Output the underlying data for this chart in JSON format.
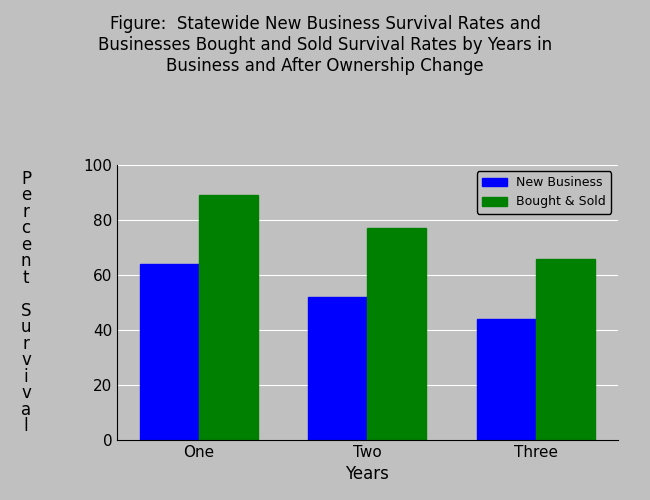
{
  "title": "Figure:  Statewide New Business Survival Rates and\nBusinesses Bought and Sold Survival Rates by Years in\nBusiness and After Ownership Change",
  "categories": [
    "One",
    "Two",
    "Three"
  ],
  "new_business": [
    64,
    52,
    44
  ],
  "bought_sold": [
    89,
    77,
    66
  ],
  "bar_color_new": "#0000ff",
  "bar_color_bought": "#008000",
  "xlabel": "Years",
  "ylabel_chars": [
    "P",
    "e",
    "r",
    "c",
    "e",
    "n",
    "t",
    " ",
    "S",
    "u",
    "r",
    "v",
    "i",
    "v",
    "a",
    "l"
  ],
  "ylim": [
    0,
    100
  ],
  "yticks": [
    0,
    20,
    40,
    60,
    80,
    100
  ],
  "legend_labels": [
    "New Business",
    "Bought & Sold"
  ],
  "background_color": "#c0c0c0",
  "plot_bg_color": "#c0c0c0",
  "title_fontsize": 12,
  "axis_label_fontsize": 12,
  "tick_fontsize": 11,
  "legend_fontsize": 9,
  "bar_width": 0.35
}
